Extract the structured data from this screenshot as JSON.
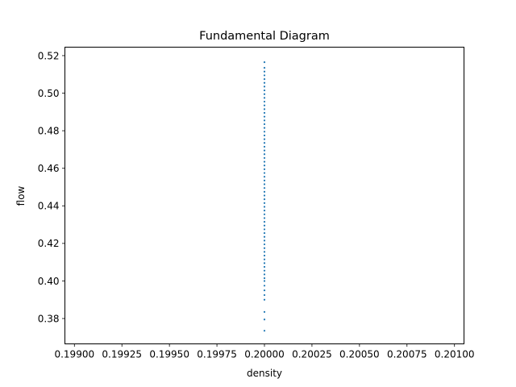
{
  "chart_data": {
    "type": "scatter",
    "title": "Fundamental Diagram",
    "xlabel": "density",
    "ylabel": "flow",
    "xlim": [
      0.19895,
      0.20105
    ],
    "ylim": [
      0.3665,
      0.5245
    ],
    "x_ticks": [
      "0.19900",
      "0.19925",
      "0.19950",
      "0.19975",
      "0.20000",
      "0.20025",
      "0.20050",
      "0.20075",
      "0.20100"
    ],
    "y_ticks": [
      "0.38",
      "0.40",
      "0.42",
      "0.44",
      "0.46",
      "0.48",
      "0.50",
      "0.52"
    ],
    "grid": false,
    "color": "#1f77b4",
    "series": [
      {
        "x": [
          0.2,
          0.2,
          0.2,
          0.2,
          0.2,
          0.2,
          0.2,
          0.2,
          0.2,
          0.2,
          0.2,
          0.2,
          0.2,
          0.2,
          0.2,
          0.2,
          0.2,
          0.2,
          0.2,
          0.2,
          0.2,
          0.2,
          0.2,
          0.2,
          0.2,
          0.2,
          0.2,
          0.2,
          0.2,
          0.2,
          0.2,
          0.2,
          0.2,
          0.2,
          0.2,
          0.2,
          0.2,
          0.2,
          0.2,
          0.2,
          0.2,
          0.2,
          0.2,
          0.2,
          0.2,
          0.2,
          0.2,
          0.2,
          0.2,
          0.2,
          0.2,
          0.2,
          0.2,
          0.2,
          0.2,
          0.2,
          0.2,
          0.2,
          0.2,
          0.2,
          0.2,
          0.2,
          0.2,
          0.2,
          0.2,
          0.2
        ],
        "y": [
          0.3735,
          0.3795,
          0.3835,
          0.39,
          0.3925,
          0.395,
          0.3975,
          0.4,
          0.4015,
          0.4035,
          0.4055,
          0.4075,
          0.4095,
          0.4115,
          0.4135,
          0.4155,
          0.4175,
          0.4195,
          0.4215,
          0.4235,
          0.4255,
          0.4275,
          0.4295,
          0.4315,
          0.4335,
          0.4355,
          0.4375,
          0.4395,
          0.4415,
          0.4435,
          0.4455,
          0.4475,
          0.4495,
          0.4515,
          0.4535,
          0.4555,
          0.4575,
          0.4595,
          0.4615,
          0.4635,
          0.4655,
          0.4675,
          0.4695,
          0.4715,
          0.4735,
          0.4755,
          0.4775,
          0.4795,
          0.4815,
          0.4835,
          0.4855,
          0.4875,
          0.4895,
          0.4915,
          0.4935,
          0.4955,
          0.4975,
          0.4995,
          0.5015,
          0.5035,
          0.5055,
          0.5075,
          0.5095,
          0.5115,
          0.5135,
          0.5165
        ]
      }
    ]
  }
}
